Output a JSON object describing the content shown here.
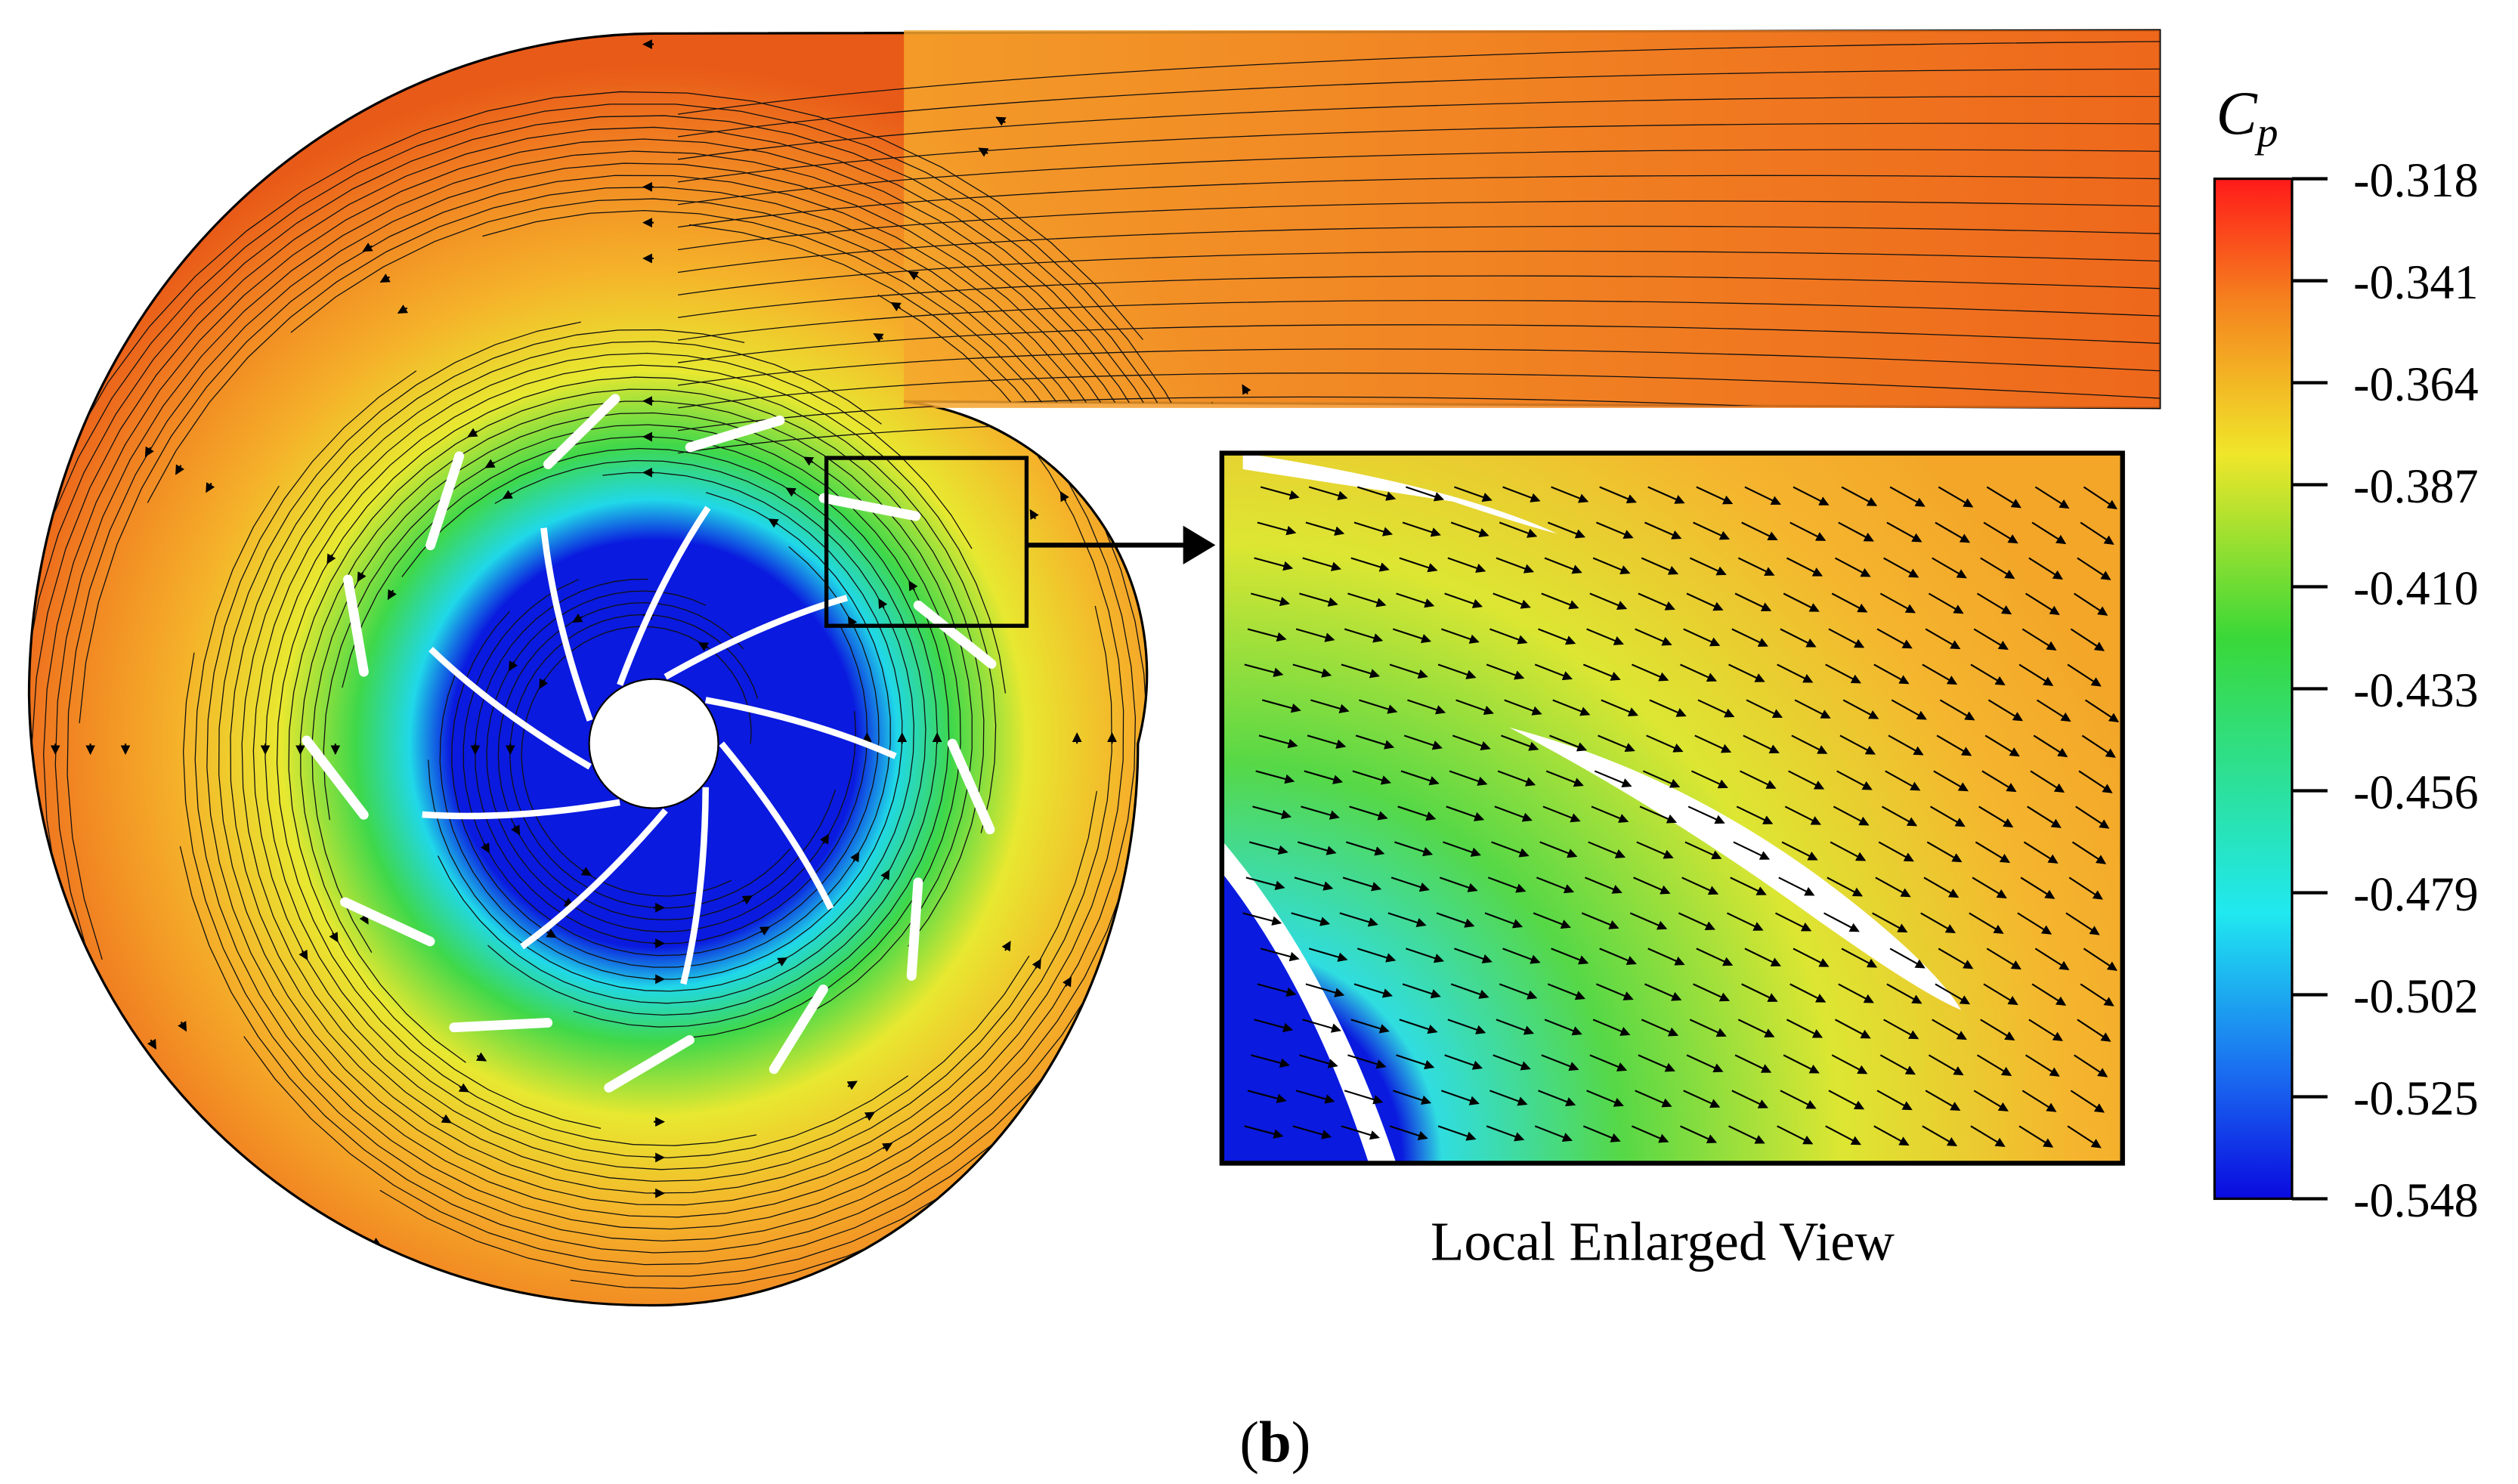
{
  "colorbar": {
    "label": {
      "main": "C",
      "sub": "p"
    },
    "ticks": [
      {
        "value": -0.318,
        "label": "-0.318"
      },
      {
        "value": -0.341,
        "label": "-0.341"
      },
      {
        "value": -0.364,
        "label": "-0.364"
      },
      {
        "value": -0.387,
        "label": "-0.387"
      },
      {
        "value": -0.41,
        "label": "-0.410"
      },
      {
        "value": -0.433,
        "label": "-0.433"
      },
      {
        "value": -0.456,
        "label": "-0.456"
      },
      {
        "value": -0.479,
        "label": "-0.479"
      },
      {
        "value": -0.502,
        "label": "-0.502"
      },
      {
        "value": -0.525,
        "label": "-0.525"
      },
      {
        "value": -0.548,
        "label": "-0.548"
      }
    ]
  },
  "inset": {
    "caption": "Local Enlarged View"
  },
  "panel": {
    "label": "b"
  }
}
